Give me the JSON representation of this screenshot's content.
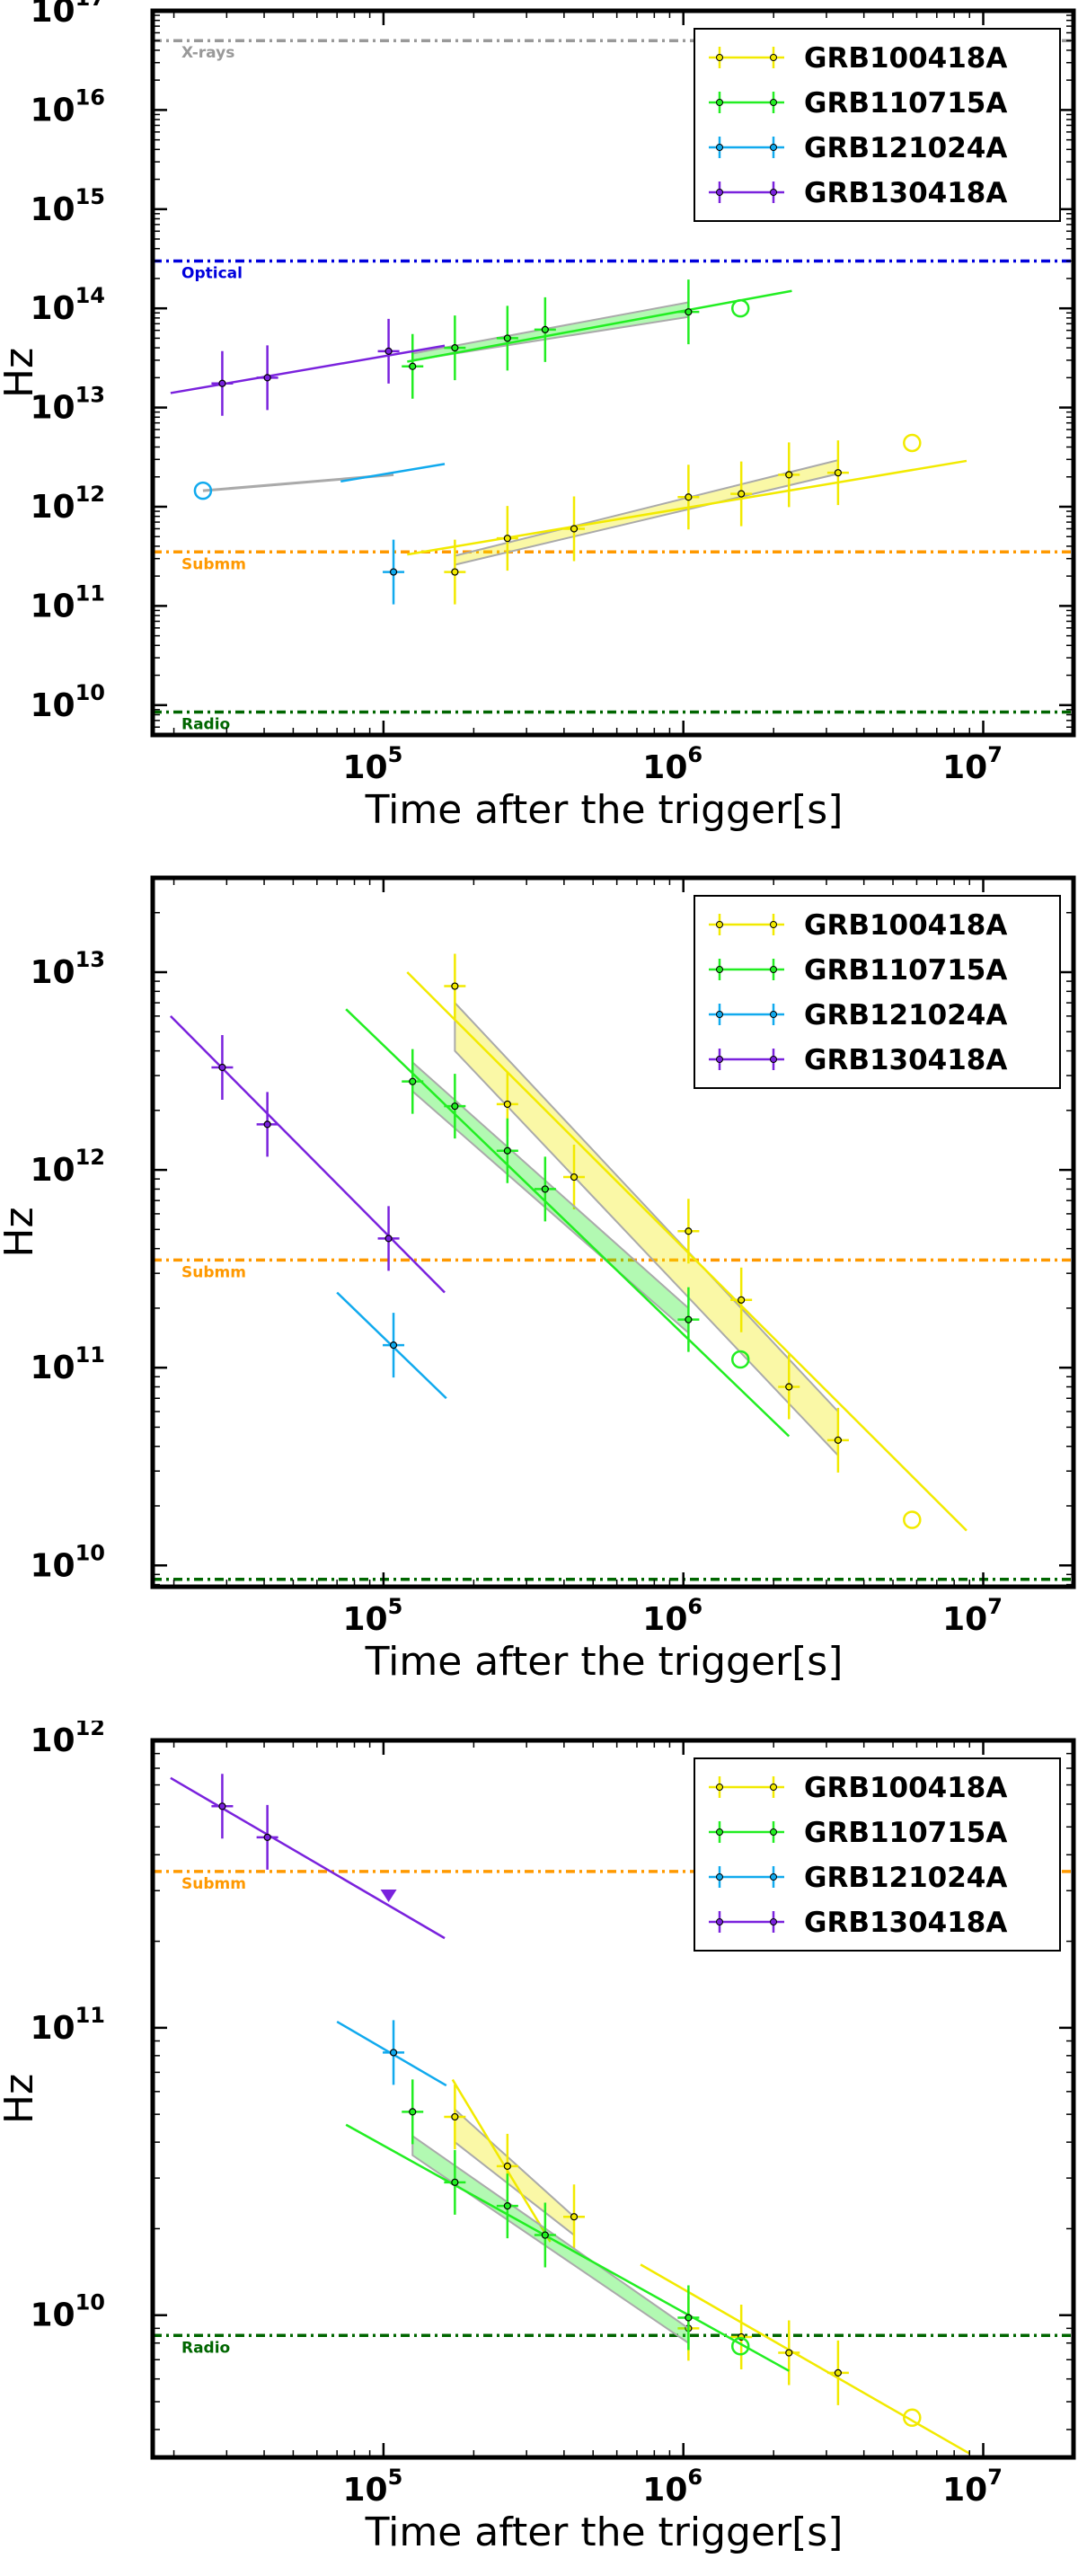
{
  "chart_data": [
    {
      "type": "line",
      "ylabel": "Hz",
      "xlabel": "Time after the trigger[s]",
      "xscale": "log",
      "yscale": "log",
      "xlim": [
        17000,
        20000000
      ],
      "ylim": [
        5000000000,
        100000000000000000
      ],
      "yticks": [
        {
          "value": 10000000000,
          "base": "10",
          "exp": "10"
        },
        {
          "value": 100000000000,
          "base": "10",
          "exp": "11"
        },
        {
          "value": 1000000000000,
          "base": "10",
          "exp": "12"
        },
        {
          "value": 10000000000000,
          "base": "10",
          "exp": "13"
        },
        {
          "value": 100000000000000,
          "base": "10",
          "exp": "14"
        },
        {
          "value": 1000000000000000,
          "base": "10",
          "exp": "15"
        },
        {
          "value": 10000000000000000,
          "base": "10",
          "exp": "16"
        },
        {
          "value": 100000000000000000,
          "base": "10",
          "exp": "17"
        }
      ],
      "xticks": [
        {
          "value": 100000,
          "base": "10",
          "exp": "5"
        },
        {
          "value": 1000000,
          "base": "10",
          "exp": "6"
        },
        {
          "value": 10000000,
          "base": "10",
          "exp": "7"
        }
      ],
      "legend_position": "top-right",
      "grid": false,
      "reference_lines": [
        {
          "label": "X-rays",
          "value": 50000000000000000,
          "color": "#999999"
        },
        {
          "label": "Optical",
          "value": 300000000000000,
          "color": "#0000dd"
        },
        {
          "label": "Submm",
          "value": 350000000000,
          "color": "#ff9900"
        },
        {
          "label": "Radio",
          "value": 8500000000,
          "color": "#006600"
        }
      ],
      "series": [
        {
          "name": "GRB100418A",
          "color": "#f2ea00",
          "points": [
            [
              173000,
              220000000000
            ],
            [
              259000,
              480000000000
            ],
            [
              432000,
              600000000000
            ],
            [
              1040000,
              1250000000000
            ],
            [
              1560000,
              1350000000000
            ],
            [
              2250000,
              2100000000000
            ],
            [
              3280000,
              2200000000000
            ]
          ],
          "open_points": [
            [
              5790000,
              4400000000000
            ]
          ],
          "fit": [
            [
              120000,
              330000000000
            ],
            [
              8800000,
              2900000000000
            ]
          ],
          "band": [
            [
              173000,
              320000000000
            ],
            [
              3280000,
              2950000000000
            ],
            [
              3280000,
              2150000000000
            ],
            [
              173000,
              260000000000
            ]
          ]
        },
        {
          "name": "GRB110715A",
          "color": "#22ee22",
          "points": [
            [
              125000,
              26000000000000
            ],
            [
              173000,
              40000000000000
            ],
            [
              259000,
              50000000000000
            ],
            [
              346000,
              61000000000000
            ],
            [
              1040000,
              92000000000000
            ]
          ],
          "open_points": [
            [
              1550000,
              100000000000000
            ]
          ],
          "fit": [
            [
              120000,
              29000000000000
            ],
            [
              2300000,
              150000000000000
            ]
          ],
          "band": [
            [
              125000,
              35000000000000
            ],
            [
              1040000,
              115000000000000
            ],
            [
              1040000,
              82000000000000
            ],
            [
              125000,
              30000000000000
            ]
          ]
        },
        {
          "name": "GRB121024A",
          "color": "#11aaee",
          "points": [
            [
              108000,
              220000000000
            ]
          ],
          "open_points": [
            [
              25000,
              1450000000000
            ]
          ],
          "fit": [
            [
              72000,
              1800000000000
            ],
            [
              160000,
              2700000000000
            ]
          ],
          "grey_fit": [
            [
              25000,
              1450000000000
            ],
            [
              108000,
              2100000000000
            ]
          ]
        },
        {
          "name": "GRB130418A",
          "color": "#7a22dd",
          "points": [
            [
              29000,
              17500000000000
            ],
            [
              41000,
              20000000000000
            ],
            [
              104000,
              37000000000000
            ]
          ],
          "open_points": [],
          "fit": [
            [
              19500,
              14000000000000
            ],
            [
              160000,
              42000000000000
            ]
          ]
        }
      ]
    },
    {
      "type": "line",
      "ylabel": "Hz",
      "xlabel": "Time after the trigger[s]",
      "xscale": "log",
      "yscale": "log",
      "xlim": [
        17000,
        20000000
      ],
      "ylim": [
        7800000000,
        30000000000000
      ],
      "yticks": [
        {
          "value": 10000000000,
          "base": "10",
          "exp": "10"
        },
        {
          "value": 100000000000,
          "base": "10",
          "exp": "11"
        },
        {
          "value": 1000000000000,
          "base": "10",
          "exp": "12"
        },
        {
          "value": 10000000000000,
          "base": "10",
          "exp": "13"
        }
      ],
      "xticks": [
        {
          "value": 100000,
          "base": "10",
          "exp": "5"
        },
        {
          "value": 1000000,
          "base": "10",
          "exp": "6"
        },
        {
          "value": 10000000,
          "base": "10",
          "exp": "7"
        }
      ],
      "legend_position": "top-right",
      "grid": false,
      "reference_lines": [
        {
          "label": "Submm",
          "value": 350000000000,
          "color": "#ff9900"
        },
        {
          "label": "Radio",
          "value": 8500000000,
          "color": "#006600"
        }
      ],
      "series": [
        {
          "name": "GRB100418A",
          "color": "#f2ea00",
          "points": [
            [
              173000,
              8500000000000
            ],
            [
              259000,
              2150000000000
            ],
            [
              432000,
              920000000000
            ],
            [
              1040000,
              490000000000
            ],
            [
              1560000,
              220000000000
            ],
            [
              2250000,
              80000000000
            ],
            [
              3280000,
              43000000000
            ]
          ],
          "open_points": [
            [
              5790000,
              17000000000
            ]
          ],
          "fit": [
            [
              120000,
              10000000000000
            ],
            [
              8800000,
              15000000000
            ]
          ],
          "band": [
            [
              173000,
              7000000000000
            ],
            [
              3280000,
              60000000000
            ],
            [
              3280000,
              36000000000
            ],
            [
              173000,
              4000000000000
            ]
          ]
        },
        {
          "name": "GRB110715A",
          "color": "#22ee22",
          "points": [
            [
              125000,
              2800000000000
            ],
            [
              173000,
              2100000000000
            ],
            [
              259000,
              1250000000000
            ],
            [
              346000,
              800000000000
            ],
            [
              1040000,
              175000000000
            ]
          ],
          "open_points": [
            [
              1550000,
              110000000000
            ]
          ],
          "fit": [
            [
              75000,
              6500000000000
            ],
            [
              2250000,
              45000000000
            ]
          ],
          "band": [
            [
              125000,
              3500000000000
            ],
            [
              1040000,
              200000000000
            ],
            [
              1040000,
              150000000000
            ],
            [
              125000,
              2500000000000
            ]
          ]
        },
        {
          "name": "GRB121024A",
          "color": "#11aaee",
          "points": [
            [
              108000,
              130000000000
            ]
          ],
          "open_points": [],
          "fit": [
            [
              70000,
              240000000000
            ],
            [
              162000,
              70000000000
            ]
          ]
        },
        {
          "name": "GRB130418A",
          "color": "#7a22dd",
          "points": [
            [
              29000,
              3300000000000
            ],
            [
              41000,
              1700000000000
            ],
            [
              104000,
              450000000000
            ]
          ],
          "open_points": [],
          "fit": [
            [
              19500,
              6000000000000
            ],
            [
              160000,
              240000000000
            ]
          ]
        }
      ]
    },
    {
      "type": "line",
      "ylabel": "Hz",
      "xlabel": "Time after the trigger[s]",
      "xscale": "log",
      "yscale": "log",
      "xlim": [
        17000,
        20000000
      ],
      "ylim": [
        3200000000,
        1000000000000
      ],
      "yticks": [
        {
          "value": 10000000000,
          "base": "10",
          "exp": "10"
        },
        {
          "value": 100000000000,
          "base": "10",
          "exp": "11"
        },
        {
          "value": 1000000000000,
          "base": "10",
          "exp": "12"
        }
      ],
      "xticks": [
        {
          "value": 100000,
          "base": "10",
          "exp": "5"
        },
        {
          "value": 1000000,
          "base": "10",
          "exp": "6"
        },
        {
          "value": 10000000,
          "base": "10",
          "exp": "7"
        }
      ],
      "legend_position": "top-right",
      "grid": false,
      "reference_lines": [
        {
          "label": "Submm",
          "value": 350000000000,
          "color": "#ff9900"
        },
        {
          "label": "Radio",
          "value": 8500000000,
          "color": "#006600"
        }
      ],
      "series": [
        {
          "name": "GRB100418A",
          "color": "#f2ea00",
          "points": [
            [
              173000,
              49000000000
            ],
            [
              259000,
              33000000000
            ],
            [
              432000,
              22000000000
            ],
            [
              1040000,
              9000000000
            ],
            [
              1560000,
              8400000000
            ],
            [
              2250000,
              7400000000
            ],
            [
              3280000,
              6300000000
            ]
          ],
          "open_points": [
            [
              5790000,
              4400000000
            ]
          ],
          "fit": [
            [
              170000,
              66000000000
            ],
            [
              360000,
              18000000000
            ]
          ],
          "fit2": [
            [
              720000,
              15000000000
            ],
            [
              9000000,
              3300000000
            ]
          ],
          "band": [
            [
              173000,
              52000000000
            ],
            [
              432000,
              22000000000
            ],
            [
              432000,
              19000000000
            ],
            [
              173000,
              40000000000
            ]
          ]
        },
        {
          "name": "GRB110715A",
          "color": "#22ee22",
          "points": [
            [
              125000,
              51000000000
            ],
            [
              173000,
              29000000000
            ],
            [
              259000,
              24000000000
            ],
            [
              346000,
              19000000000
            ],
            [
              1040000,
              9800000000
            ]
          ],
          "open_points": [
            [
              1550000,
              7800000000
            ]
          ],
          "fit": [
            [
              75000,
              46000000000
            ],
            [
              2250000,
              6400000000
            ]
          ],
          "band": [
            [
              125000,
              42000000000
            ],
            [
              1040000,
              9000000000
            ],
            [
              1040000,
              8000000000
            ],
            [
              125000,
              36000000000
            ]
          ]
        },
        {
          "name": "GRB121024A",
          "color": "#11aaee",
          "points": [
            [
              108000,
              82000000000
            ]
          ],
          "open_points": [],
          "fit": [
            [
              70000,
              105000000000
            ],
            [
              162000,
              63000000000
            ]
          ]
        },
        {
          "name": "GRB130418A",
          "color": "#7a22dd",
          "points": [
            [
              29000,
              590000000000
            ],
            [
              41000,
              460000000000
            ]
          ],
          "open_points": [],
          "upper_limits": [
            [
              104000,
              290000000000
            ]
          ],
          "fit": [
            [
              19500,
              740000000000
            ],
            [
              160000,
              205000000000
            ]
          ]
        }
      ]
    }
  ]
}
